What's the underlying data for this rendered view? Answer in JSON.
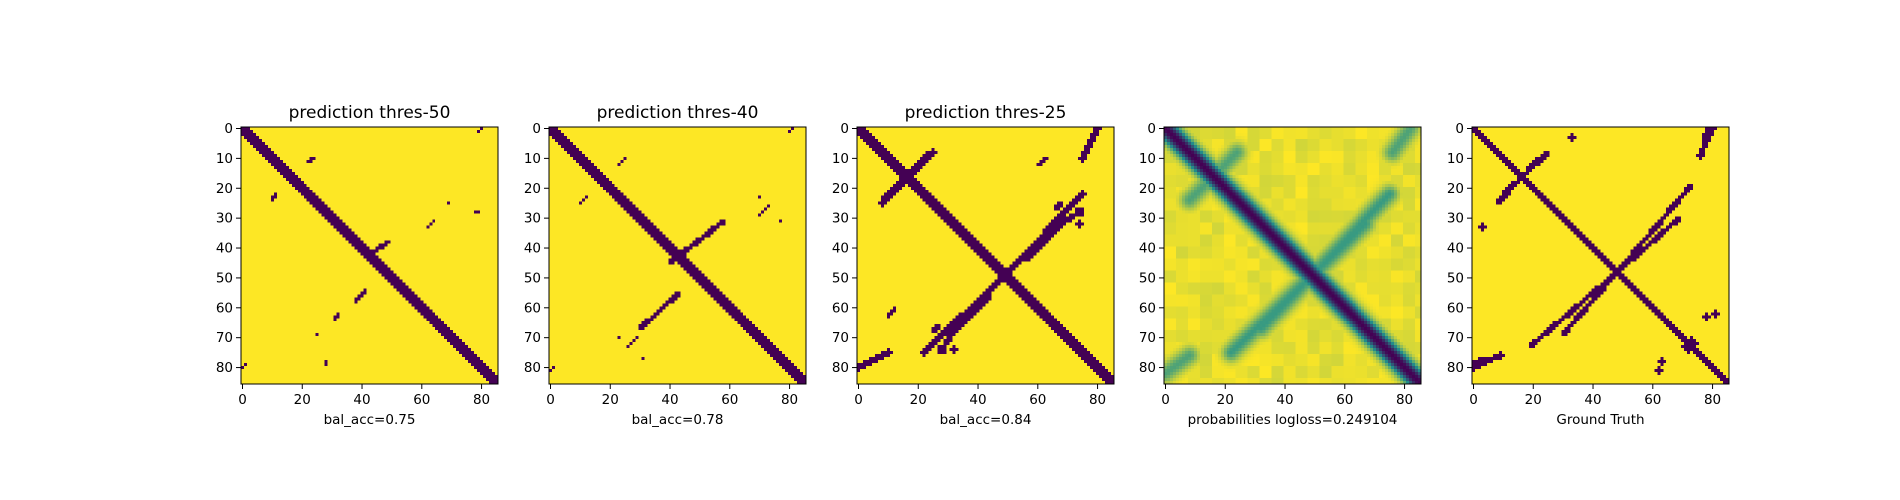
{
  "chart_data": [
    {
      "type": "heatmap",
      "title": "prediction thres-50",
      "xlabel": "bal_acc=0.75",
      "kind": "binary",
      "grid": false,
      "size": 86,
      "xticks": [
        0,
        20,
        40,
        60,
        80
      ],
      "yticks": [
        0,
        10,
        20,
        30,
        40,
        50,
        60,
        70,
        80
      ],
      "xlim": [
        0,
        85
      ],
      "ylim": [
        85,
        0
      ],
      "colors": {
        "low": "#440154",
        "high": "#fde725"
      },
      "dark_regions": [
        {
          "shape": "band",
          "from": [
            0,
            0
          ],
          "to": [
            85,
            85
          ],
          "width": 3
        },
        {
          "shape": "band",
          "from": [
            44,
            41
          ],
          "to": [
            49,
            38
          ],
          "width": 1.5
        },
        {
          "shape": "band",
          "from": [
            41,
            54
          ],
          "to": [
            38,
            58
          ],
          "width": 1.5
        },
        {
          "shape": "band",
          "from": [
            62,
            33
          ],
          "to": [
            64,
            31
          ],
          "width": 1.2
        },
        {
          "shape": "band",
          "from": [
            32,
            62
          ],
          "to": [
            31,
            64
          ],
          "width": 1.2
        },
        {
          "shape": "band",
          "from": [
            22,
            11
          ],
          "to": [
            24,
            10
          ],
          "width": 1.2
        },
        {
          "shape": "band",
          "from": [
            11,
            22
          ],
          "to": [
            10,
            24
          ],
          "width": 1.2
        },
        {
          "shape": "band",
          "from": [
            78,
            28
          ],
          "to": [
            79,
            28
          ],
          "width": 1
        },
        {
          "shape": "band",
          "from": [
            28,
            78
          ],
          "to": [
            28,
            79
          ],
          "width": 1
        },
        {
          "shape": "band",
          "from": [
            79,
            1
          ],
          "to": [
            80,
            0
          ],
          "width": 1
        },
        {
          "shape": "band",
          "from": [
            1,
            79
          ],
          "to": [
            0,
            80
          ],
          "width": 1
        },
        {
          "shape": "dot",
          "at": [
            69,
            25
          ],
          "r": 0.6
        },
        {
          "shape": "dot",
          "at": [
            25,
            69
          ],
          "r": 0.6
        }
      ]
    },
    {
      "type": "heatmap",
      "title": "prediction thres-40",
      "xlabel": "bal_acc=0.78",
      "kind": "binary",
      "grid": false,
      "size": 86,
      "xticks": [
        0,
        20,
        40,
        60,
        80
      ],
      "yticks": [
        0,
        10,
        20,
        30,
        40,
        50,
        60,
        70,
        80
      ],
      "xlim": [
        0,
        85
      ],
      "ylim": [
        85,
        0
      ],
      "colors": {
        "low": "#440154",
        "high": "#fde725"
      },
      "dark_regions": [
        {
          "shape": "band",
          "from": [
            0,
            0
          ],
          "to": [
            85,
            85
          ],
          "width": 3.2
        },
        {
          "shape": "band",
          "from": [
            40,
            45
          ],
          "to": [
            58,
            31
          ],
          "width": 1.8
        },
        {
          "shape": "band",
          "from": [
            30,
            67
          ],
          "to": [
            43,
            55
          ],
          "width": 1.8
        },
        {
          "shape": "band",
          "from": [
            23,
            12
          ],
          "to": [
            25,
            10
          ],
          "width": 1.3
        },
        {
          "shape": "band",
          "from": [
            12,
            23
          ],
          "to": [
            10,
            25
          ],
          "width": 1.3
        },
        {
          "shape": "band",
          "from": [
            70,
            29
          ],
          "to": [
            73,
            26
          ],
          "width": 1.3
        },
        {
          "shape": "band",
          "from": [
            29,
            70
          ],
          "to": [
            26,
            73
          ],
          "width": 1.3
        },
        {
          "shape": "band",
          "from": [
            80,
            1
          ],
          "to": [
            81,
            0
          ],
          "width": 1
        },
        {
          "shape": "band",
          "from": [
            1,
            80
          ],
          "to": [
            0,
            81
          ],
          "width": 1.4
        },
        {
          "shape": "dot",
          "at": [
            70,
            23
          ],
          "r": 0.7
        },
        {
          "shape": "dot",
          "at": [
            23,
            70
          ],
          "r": 0.7
        },
        {
          "shape": "dot",
          "at": [
            31,
            77
          ],
          "r": 0.8
        },
        {
          "shape": "dot",
          "at": [
            77,
            31
          ],
          "r": 0.8
        }
      ]
    },
    {
      "type": "heatmap",
      "title": "prediction thres-25",
      "xlabel": "bal_acc=0.84",
      "kind": "binary",
      "grid": false,
      "size": 86,
      "xticks": [
        0,
        20,
        40,
        60,
        80
      ],
      "yticks": [
        0,
        10,
        20,
        30,
        40,
        50,
        60,
        70,
        80
      ],
      "xlim": [
        0,
        85
      ],
      "ylim": [
        85,
        0
      ],
      "colors": {
        "low": "#440154",
        "high": "#fde725"
      },
      "dark_regions": [
        {
          "shape": "band",
          "from": [
            0,
            0
          ],
          "to": [
            85,
            85
          ],
          "width": 3.6
        },
        {
          "shape": "band",
          "from": [
            30,
            69
          ],
          "to": [
            75,
            22
          ],
          "width": 2.2
        },
        {
          "shape": "band",
          "from": [
            22,
            75
          ],
          "to": [
            69,
            30
          ],
          "width": 2.2
        },
        {
          "shape": "band",
          "from": [
            9,
            23
          ],
          "to": [
            25,
            8
          ],
          "width": 2.2
        },
        {
          "shape": "band",
          "from": [
            8,
            25
          ],
          "to": [
            23,
            9
          ],
          "width": 2.2
        },
        {
          "shape": "band",
          "from": [
            56,
            44
          ],
          "to": [
            72,
            29
          ],
          "width": 1.6
        },
        {
          "shape": "band",
          "from": [
            44,
            56
          ],
          "to": [
            29,
            72
          ],
          "width": 1.6
        },
        {
          "shape": "band",
          "from": [
            0,
            80
          ],
          "to": [
            10,
            75
          ],
          "width": 2.2
        },
        {
          "shape": "band",
          "from": [
            75,
            10
          ],
          "to": [
            80,
            0
          ],
          "width": 2.2
        },
        {
          "shape": "band",
          "from": [
            25,
            68
          ],
          "to": [
            27,
            66
          ],
          "width": 1.5
        },
        {
          "shape": "band",
          "from": [
            66,
            27
          ],
          "to": [
            68,
            25
          ],
          "width": 1.5
        },
        {
          "shape": "band",
          "from": [
            60,
            12
          ],
          "to": [
            63,
            10
          ],
          "width": 1.3
        },
        {
          "shape": "band",
          "from": [
            12,
            60
          ],
          "to": [
            10,
            63
          ],
          "width": 1.3
        },
        {
          "shape": "dot",
          "at": [
            74,
            28
          ],
          "r": 1.8
        },
        {
          "shape": "dot",
          "at": [
            28,
            74
          ],
          "r": 1.8
        },
        {
          "shape": "dot",
          "at": [
            32,
            74
          ],
          "r": 1.2
        },
        {
          "shape": "dot",
          "at": [
            74,
            32
          ],
          "r": 1.2
        }
      ]
    },
    {
      "type": "heatmap",
      "title": "",
      "xlabel": "probabilities logloss=0.249104",
      "kind": "continuous",
      "grid": false,
      "size": 86,
      "xticks": [
        0,
        20,
        40,
        60,
        80
      ],
      "yticks": [
        0,
        10,
        20,
        30,
        40,
        50,
        60,
        70,
        80
      ],
      "xlim": [
        0,
        85
      ],
      "ylim": [
        85,
        0
      ],
      "colors": {
        "low": "#440154",
        "mid": "#21918c",
        "high": "#fde725"
      },
      "dark_regions": [
        {
          "shape": "band",
          "from": [
            0,
            0
          ],
          "to": [
            85,
            85
          ],
          "width": 3.2,
          "level": 0.0
        },
        {
          "shape": "band",
          "from": [
            32,
            67
          ],
          "to": [
            75,
            22
          ],
          "width": 3,
          "level": 0.55
        },
        {
          "shape": "band",
          "from": [
            22,
            75
          ],
          "to": [
            67,
            32
          ],
          "width": 3,
          "level": 0.55
        },
        {
          "shape": "band",
          "from": [
            8,
            24
          ],
          "to": [
            24,
            8
          ],
          "width": 3,
          "level": 0.6
        },
        {
          "shape": "band",
          "from": [
            0,
            82
          ],
          "to": [
            8,
            76
          ],
          "width": 3,
          "level": 0.6
        },
        {
          "shape": "band",
          "from": [
            76,
            8
          ],
          "to": [
            82,
            0
          ],
          "width": 3,
          "level": 0.6
        }
      ]
    },
    {
      "type": "heatmap",
      "title": "",
      "xlabel": "Ground Truth",
      "kind": "binary",
      "grid": false,
      "size": 86,
      "xticks": [
        0,
        20,
        40,
        60,
        80
      ],
      "yticks": [
        0,
        10,
        20,
        30,
        40,
        50,
        60,
        70,
        80
      ],
      "xlim": [
        0,
        85
      ],
      "ylim": [
        85,
        0
      ],
      "colors": {
        "low": "#440154",
        "high": "#fde725"
      },
      "dark_regions": [
        {
          "shape": "band",
          "from": [
            0,
            0
          ],
          "to": [
            85,
            85
          ],
          "width": 2.6
        },
        {
          "shape": "band",
          "from": [
            30,
            69
          ],
          "to": [
            73,
            19
          ],
          "width": 1.8
        },
        {
          "shape": "band",
          "from": [
            19,
            73
          ],
          "to": [
            69,
            30
          ],
          "width": 1.8
        },
        {
          "shape": "band",
          "from": [
            10,
            22
          ],
          "to": [
            25,
            8
          ],
          "width": 1.8
        },
        {
          "shape": "band",
          "from": [
            8,
            25
          ],
          "to": [
            22,
            10
          ],
          "width": 1.8
        },
        {
          "shape": "band",
          "from": [
            0,
            80
          ],
          "to": [
            9,
            76
          ],
          "width": 2
        },
        {
          "shape": "band",
          "from": [
            76,
            9
          ],
          "to": [
            80,
            0
          ],
          "width": 2
        },
        {
          "shape": "band",
          "from": [
            77,
            7
          ],
          "to": [
            78,
            0
          ],
          "width": 1.5
        },
        {
          "shape": "band",
          "from": [
            7,
            77
          ],
          "to": [
            0,
            78
          ],
          "width": 1.5
        },
        {
          "shape": "dot",
          "at": [
            72,
            73
          ],
          "r": 2
        },
        {
          "shape": "dot",
          "at": [
            73,
            72
          ],
          "r": 2
        },
        {
          "shape": "dot",
          "at": [
            63,
            78
          ],
          "r": 1.2
        },
        {
          "shape": "dot",
          "at": [
            78,
            63
          ],
          "r": 1.2
        },
        {
          "shape": "dot",
          "at": [
            81,
            62
          ],
          "r": 1
        },
        {
          "shape": "dot",
          "at": [
            62,
            81
          ],
          "r": 1
        },
        {
          "shape": "dot",
          "at": [
            3,
            33
          ],
          "r": 1
        },
        {
          "shape": "dot",
          "at": [
            33,
            3
          ],
          "r": 1
        },
        {
          "shape": "dot",
          "at": [
            41,
            53
          ],
          "r": 0.8
        },
        {
          "shape": "dot",
          "at": [
            53,
            41
          ],
          "r": 0.8
        }
      ]
    }
  ]
}
